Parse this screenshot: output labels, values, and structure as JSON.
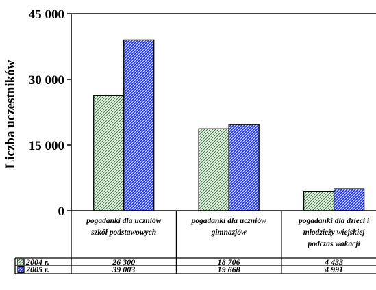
{
  "chart_data": {
    "type": "bar",
    "ylabel": "Liczba uczestników",
    "ylim": [
      0,
      45000
    ],
    "yticks": [
      0,
      15000,
      30000,
      45000
    ],
    "ytick_labels": [
      "0",
      "15 000",
      "30 000",
      "45 000"
    ],
    "categories": [
      [
        "pogadanki dla uczniów",
        "szkół podstawowych"
      ],
      [
        "pogadanki dla uczniów",
        "gimnazjów"
      ],
      [
        "pogadanki dla dzieci i",
        "młodzieży wiejskiej",
        "podczas wakacji"
      ]
    ],
    "series": [
      {
        "name": "2004 r.",
        "values": [
          26300,
          18706,
          4433
        ],
        "labels": [
          "26 300",
          "18 706",
          "4 433"
        ],
        "color": "#2e8b2e"
      },
      {
        "name": "2005 r.",
        "values": [
          39003,
          19668,
          4991
        ],
        "labels": [
          "39 003",
          "19 668",
          "4 991"
        ],
        "color": "#1a2fd6"
      }
    ],
    "grid": false,
    "legend": "data-table"
  }
}
